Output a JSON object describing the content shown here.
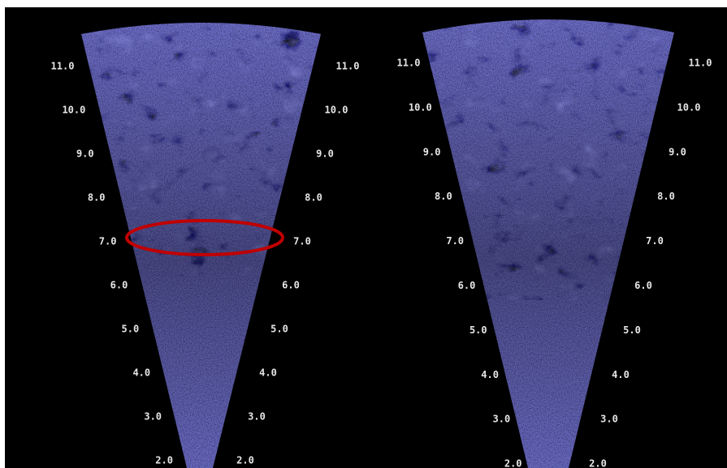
{
  "panels": [
    {
      "left_labels": [
        "11.0",
        "10.0",
        "9.0",
        "8.0",
        "7.0",
        "6.0",
        "5.0",
        "4.0",
        "3.0",
        "2.0"
      ],
      "right_labels": [
        "11.0",
        "10.0",
        "9.0",
        "8.0",
        "7.0",
        "6.0",
        "5.0",
        "4.0",
        "3.0",
        "2.0"
      ]
    },
    {
      "left_labels": [
        "11.0",
        "10.0",
        "9.0",
        "8.0",
        "7.0",
        "6.0",
        "5.0",
        "4.0",
        "3.0",
        "2.0"
      ],
      "right_labels": [
        "11.0",
        "10.0",
        "9.0",
        "8.0",
        "7.0",
        "6.0",
        "5.0",
        "4.0",
        "3.0",
        "2.0"
      ]
    }
  ]
}
